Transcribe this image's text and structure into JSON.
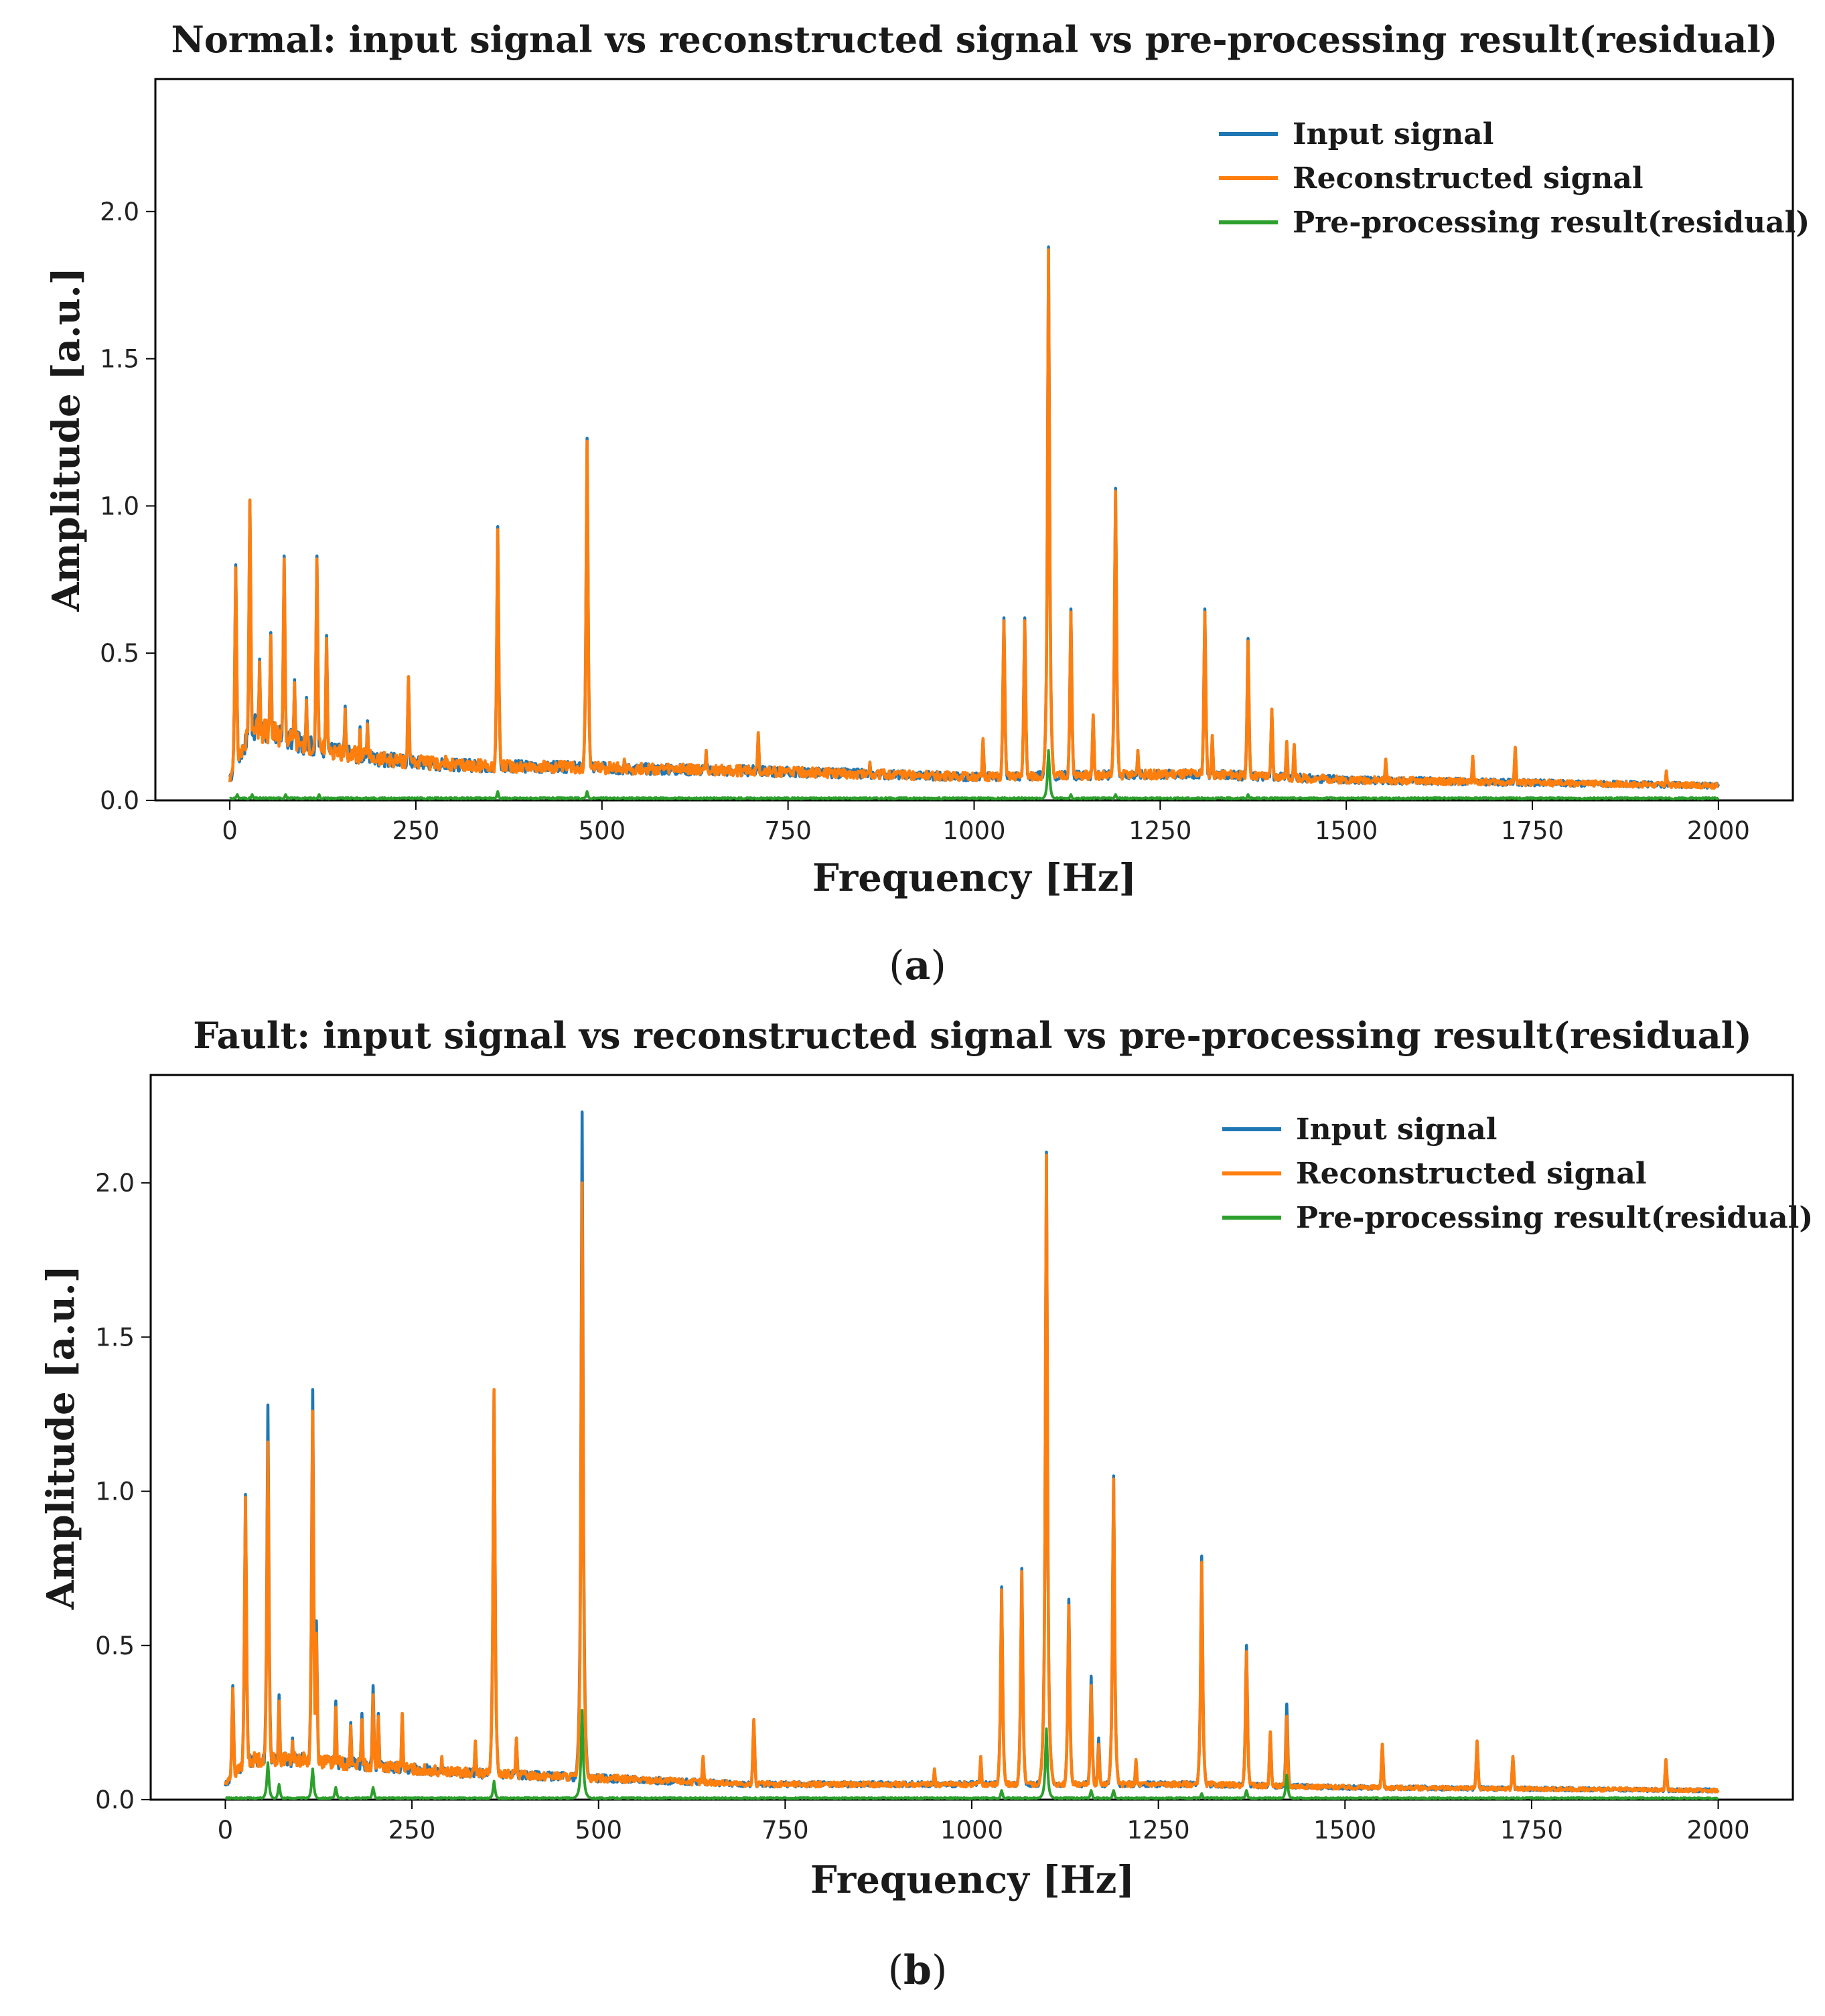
{
  "colors": {
    "input": "#1f77b4",
    "reconstructed": "#ff7f0e",
    "residual": "#2ca02c"
  },
  "chart_data": [
    {
      "type": "line",
      "title": "Normal: input signal vs reconstructed signal vs pre-processing result(residual)",
      "xlabel": "Frequency [Hz]",
      "ylabel": "Amplitude [a.u.]",
      "caption": "a",
      "xlim": [
        -100,
        2100
      ],
      "ylim": [
        0,
        2.45
      ],
      "xticks": [
        0,
        250,
        500,
        750,
        1000,
        1250,
        1500,
        1750,
        2000
      ],
      "yticks": [
        0.0,
        0.5,
        1.0,
        1.5,
        2.0
      ],
      "xtick_labels": [
        "0",
        "250",
        "500",
        "750",
        "1000",
        "1250",
        "1500",
        "1750",
        "2000"
      ],
      "ytick_labels": [
        "0.0",
        "0.5",
        "1.0",
        "1.5",
        "2.0"
      ],
      "legend_position": "top-right",
      "baseline": {
        "input": [
          [
            0,
            0.07
          ],
          [
            30,
            0.25
          ],
          [
            100,
            0.19
          ],
          [
            200,
            0.14
          ],
          [
            300,
            0.12
          ],
          [
            500,
            0.11
          ],
          [
            700,
            0.1
          ],
          [
            1000,
            0.08
          ],
          [
            1300,
            0.09
          ],
          [
            1500,
            0.07
          ],
          [
            2000,
            0.05
          ]
        ],
        "residual": 0.007
      },
      "series": [
        {
          "name": "Input signal",
          "key": "input",
          "peaks": [
            [
              8,
              0.8
            ],
            [
              27,
              1.02
            ],
            [
              40,
              0.48
            ],
            [
              55,
              0.57
            ],
            [
              73,
              0.83
            ],
            [
              87,
              0.41
            ],
            [
              103,
              0.35
            ],
            [
              117,
              0.83
            ],
            [
              130,
              0.56
            ],
            [
              155,
              0.32
            ],
            [
              175,
              0.25
            ],
            [
              185,
              0.27
            ],
            [
              240,
              0.42
            ],
            [
              290,
              0.15
            ],
            [
              360,
              0.93
            ],
            [
              480,
              1.23
            ],
            [
              530,
              0.14
            ],
            [
              640,
              0.17
            ],
            [
              710,
              0.23
            ],
            [
              860,
              0.13
            ],
            [
              1012,
              0.21
            ],
            [
              1040,
              0.62
            ],
            [
              1068,
              0.62
            ],
            [
              1100,
              1.88
            ],
            [
              1130,
              0.65
            ],
            [
              1160,
              0.29
            ],
            [
              1190,
              1.06
            ],
            [
              1220,
              0.17
            ],
            [
              1310,
              0.65
            ],
            [
              1320,
              0.22
            ],
            [
              1368,
              0.55
            ],
            [
              1400,
              0.31
            ],
            [
              1420,
              0.2
            ],
            [
              1430,
              0.19
            ],
            [
              1553,
              0.14
            ],
            [
              1670,
              0.15
            ],
            [
              1727,
              0.18
            ],
            [
              1930,
              0.1
            ]
          ]
        },
        {
          "name": "Reconstructed signal",
          "key": "reconstructed",
          "peaks": [
            [
              8,
              0.79
            ],
            [
              27,
              1.02
            ],
            [
              40,
              0.47
            ],
            [
              55,
              0.56
            ],
            [
              73,
              0.82
            ],
            [
              87,
              0.4
            ],
            [
              103,
              0.34
            ],
            [
              117,
              0.82
            ],
            [
              130,
              0.55
            ],
            [
              155,
              0.31
            ],
            [
              175,
              0.24
            ],
            [
              185,
              0.26
            ],
            [
              240,
              0.42
            ],
            [
              290,
              0.15
            ],
            [
              360,
              0.92
            ],
            [
              480,
              1.22
            ],
            [
              530,
              0.14
            ],
            [
              640,
              0.17
            ],
            [
              710,
              0.23
            ],
            [
              860,
              0.13
            ],
            [
              1012,
              0.21
            ],
            [
              1040,
              0.61
            ],
            [
              1068,
              0.61
            ],
            [
              1100,
              1.87
            ],
            [
              1130,
              0.64
            ],
            [
              1160,
              0.29
            ],
            [
              1190,
              1.05
            ],
            [
              1220,
              0.17
            ],
            [
              1310,
              0.64
            ],
            [
              1320,
              0.22
            ],
            [
              1368,
              0.54
            ],
            [
              1400,
              0.31
            ],
            [
              1420,
              0.2
            ],
            [
              1430,
              0.19
            ],
            [
              1553,
              0.14
            ],
            [
              1670,
              0.15
            ],
            [
              1727,
              0.18
            ],
            [
              1930,
              0.1
            ]
          ]
        },
        {
          "name": "Pre-processing result(residual)",
          "key": "residual",
          "peaks": [
            [
              10,
              0.02
            ],
            [
              30,
              0.02
            ],
            [
              75,
              0.02
            ],
            [
              120,
              0.02
            ],
            [
              360,
              0.03
            ],
            [
              480,
              0.03
            ],
            [
              1100,
              0.17
            ],
            [
              1130,
              0.02
            ],
            [
              1190,
              0.02
            ],
            [
              1368,
              0.02
            ]
          ]
        }
      ]
    },
    {
      "type": "line",
      "title": "Fault: input signal vs reconstructed signal vs pre-processing result(residual)",
      "xlabel": "Frequency [Hz]",
      "ylabel": "Amplitude [a.u.]",
      "caption": "b",
      "xlim": [
        -100,
        2100
      ],
      "ylim": [
        0,
        2.35
      ],
      "xticks": [
        0,
        250,
        500,
        750,
        1000,
        1250,
        1500,
        1750,
        2000
      ],
      "yticks": [
        0.0,
        0.5,
        1.0,
        1.5,
        2.0
      ],
      "xtick_labels": [
        "0",
        "250",
        "500",
        "750",
        "1000",
        "1250",
        "1500",
        "1750",
        "2000"
      ],
      "ytick_labels": [
        "0.0",
        "0.5",
        "1.0",
        "1.5",
        "2.0"
      ],
      "legend_position": "top-right",
      "baseline": {
        "input": [
          [
            0,
            0.05
          ],
          [
            30,
            0.13
          ],
          [
            100,
            0.13
          ],
          [
            200,
            0.11
          ],
          [
            300,
            0.09
          ],
          [
            500,
            0.07
          ],
          [
            700,
            0.05
          ],
          [
            1000,
            0.05
          ],
          [
            1300,
            0.05
          ],
          [
            1500,
            0.04
          ],
          [
            2000,
            0.03
          ]
        ],
        "residual": 0.005
      },
      "series": [
        {
          "name": "Input signal",
          "key": "input",
          "peaks": [
            [
              10,
              0.37
            ],
            [
              27,
              0.99
            ],
            [
              57,
              1.28
            ],
            [
              72,
              0.34
            ],
            [
              90,
              0.2
            ],
            [
              117,
              1.33
            ],
            [
              122,
              0.58
            ],
            [
              148,
              0.32
            ],
            [
              168,
              0.25
            ],
            [
              183,
              0.28
            ],
            [
              198,
              0.37
            ],
            [
              205,
              0.28
            ],
            [
              237,
              0.28
            ],
            [
              290,
              0.14
            ],
            [
              335,
              0.19
            ],
            [
              360,
              1.33
            ],
            [
              390,
              0.2
            ],
            [
              478,
              2.23
            ],
            [
              640,
              0.14
            ],
            [
              708,
              0.26
            ],
            [
              950,
              0.1
            ],
            [
              1012,
              0.14
            ],
            [
              1040,
              0.69
            ],
            [
              1067,
              0.75
            ],
            [
              1100,
              2.1
            ],
            [
              1130,
              0.65
            ],
            [
              1160,
              0.4
            ],
            [
              1170,
              0.2
            ],
            [
              1190,
              1.05
            ],
            [
              1220,
              0.13
            ],
            [
              1308,
              0.79
            ],
            [
              1368,
              0.5
            ],
            [
              1400,
              0.22
            ],
            [
              1422,
              0.31
            ],
            [
              1550,
              0.18
            ],
            [
              1677,
              0.19
            ],
            [
              1725,
              0.14
            ],
            [
              1930,
              0.13
            ]
          ]
        },
        {
          "name": "Reconstructed signal",
          "key": "reconstructed",
          "peaks": [
            [
              10,
              0.36
            ],
            [
              27,
              0.98
            ],
            [
              57,
              1.16
            ],
            [
              72,
              0.32
            ],
            [
              90,
              0.19
            ],
            [
              117,
              1.26
            ],
            [
              122,
              0.54
            ],
            [
              148,
              0.3
            ],
            [
              168,
              0.24
            ],
            [
              183,
              0.26
            ],
            [
              198,
              0.34
            ],
            [
              205,
              0.27
            ],
            [
              237,
              0.28
            ],
            [
              290,
              0.14
            ],
            [
              335,
              0.19
            ],
            [
              360,
              1.33
            ],
            [
              390,
              0.2
            ],
            [
              478,
              2.0
            ],
            [
              640,
              0.14
            ],
            [
              708,
              0.26
            ],
            [
              950,
              0.1
            ],
            [
              1012,
              0.14
            ],
            [
              1040,
              0.68
            ],
            [
              1067,
              0.74
            ],
            [
              1100,
              2.09
            ],
            [
              1130,
              0.63
            ],
            [
              1160,
              0.37
            ],
            [
              1170,
              0.18
            ],
            [
              1190,
              1.04
            ],
            [
              1220,
              0.13
            ],
            [
              1308,
              0.77
            ],
            [
              1368,
              0.48
            ],
            [
              1400,
              0.22
            ],
            [
              1422,
              0.27
            ],
            [
              1550,
              0.18
            ],
            [
              1677,
              0.19
            ],
            [
              1725,
              0.14
            ],
            [
              1930,
              0.13
            ]
          ]
        },
        {
          "name": "Pre-processing result(residual)",
          "key": "residual",
          "peaks": [
            [
              57,
              0.12
            ],
            [
              72,
              0.05
            ],
            [
              117,
              0.1
            ],
            [
              148,
              0.04
            ],
            [
              198,
              0.04
            ],
            [
              360,
              0.06
            ],
            [
              478,
              0.29
            ],
            [
              1040,
              0.03
            ],
            [
              1100,
              0.23
            ],
            [
              1160,
              0.03
            ],
            [
              1190,
              0.03
            ],
            [
              1308,
              0.02
            ],
            [
              1368,
              0.03
            ],
            [
              1422,
              0.08
            ]
          ]
        }
      ]
    }
  ]
}
